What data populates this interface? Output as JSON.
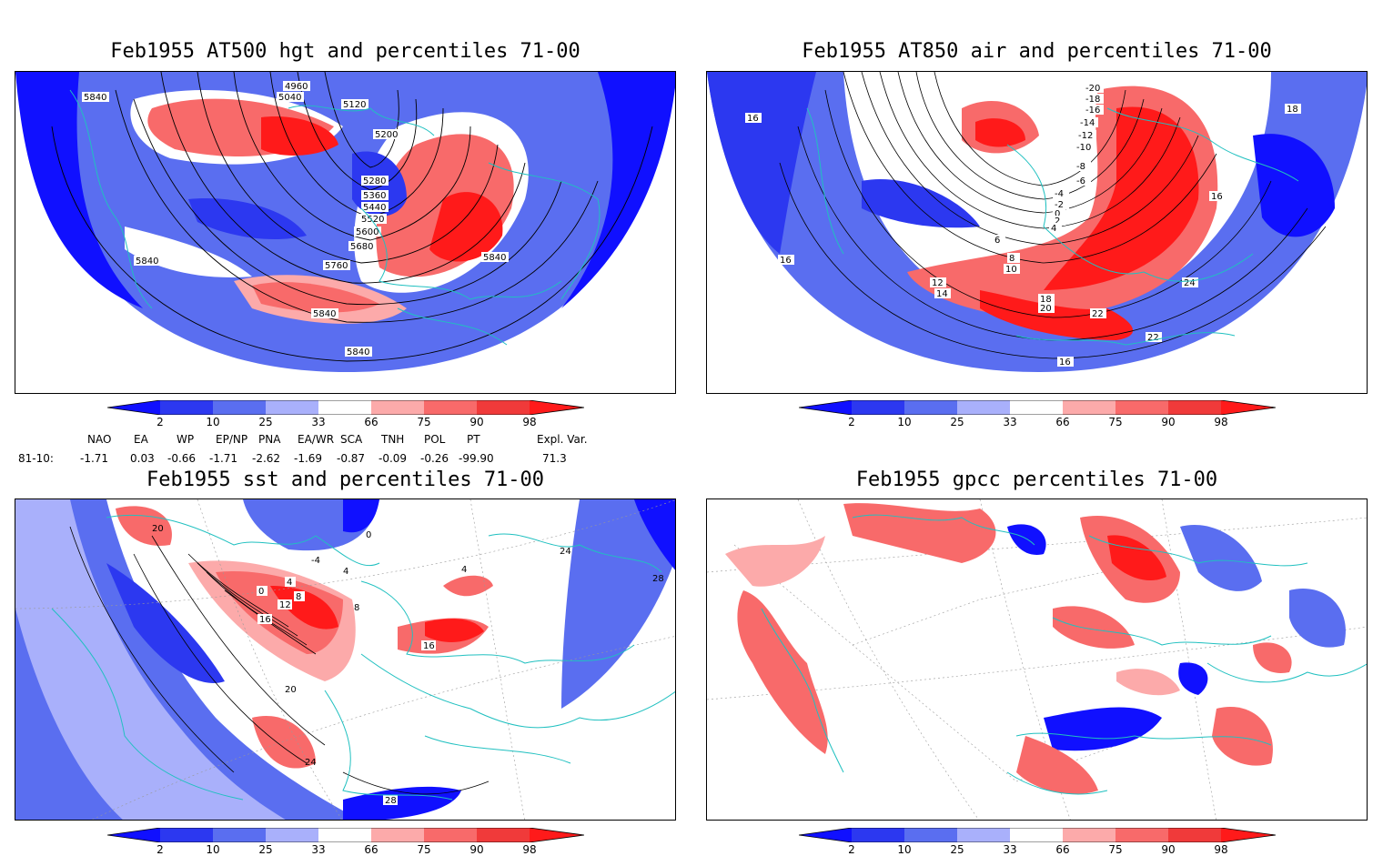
{
  "panels": [
    {
      "id": "p1",
      "title": "Feb1955 AT500 hgt and percentiles 71-00",
      "contour_labels": [
        "5840",
        "5040",
        "4960",
        "5120",
        "5200",
        "5280",
        "5360",
        "5440",
        "5520",
        "5600",
        "5680",
        "5760",
        "5840",
        "5840",
        "5840",
        "5840"
      ]
    },
    {
      "id": "p2",
      "title": "Feb1955 AT850 air and percentiles 71-00",
      "contour_labels": [
        "-20",
        "-18",
        "-16",
        "-14",
        "-12",
        "-10",
        "-8",
        "-6",
        "-4",
        "-2",
        "0",
        "2",
        "4",
        "6",
        "8",
        "10",
        "12",
        "14",
        "16",
        "16",
        "16",
        "18",
        "18",
        "20",
        "22",
        "22",
        "24",
        "16"
      ]
    },
    {
      "id": "p3",
      "title": "Feb1955 sst and percentiles 71-00",
      "contour_labels": [
        "20",
        "0",
        "4",
        "8",
        "12",
        "16",
        "20",
        "24",
        "24",
        "28",
        "28",
        "16",
        "4",
        "0",
        "8",
        "-4",
        "4"
      ]
    },
    {
      "id": "p4",
      "title": "Feb1955 gpcc percentiles 71-00",
      "contour_labels": []
    }
  ],
  "colorbar": {
    "labels": [
      "2",
      "10",
      "25",
      "33",
      "66",
      "75",
      "90",
      "98"
    ],
    "colors": {
      "lt2": "#1010ff",
      "b2_10": "#2c38f0",
      "b10_25": "#5a6ef0",
      "b25_33": "#a9b0fb",
      "mid": "#ffffff",
      "b66_75": "#fcaaaa",
      "b75_90": "#f86a6a",
      "b90_98": "#f03a3a",
      "gt98": "#ff1a1a"
    }
  },
  "indices": {
    "row_label": "81-10:",
    "headers": [
      "NAO",
      "EA",
      "WP",
      "EP/NP",
      "PNA",
      "EA/WR",
      "SCA",
      "TNH",
      "POL",
      "PT",
      "Expl. Var."
    ],
    "values": [
      "-1.71",
      "0.03",
      "-0.66",
      "-1.71",
      "-2.62",
      "-1.69",
      "-0.87",
      "-0.09",
      "-0.26",
      "-99.90",
      "71.3"
    ]
  },
  "colors": {
    "coast": "#20c0c0",
    "contour": "#000000",
    "grid": "#999999"
  }
}
